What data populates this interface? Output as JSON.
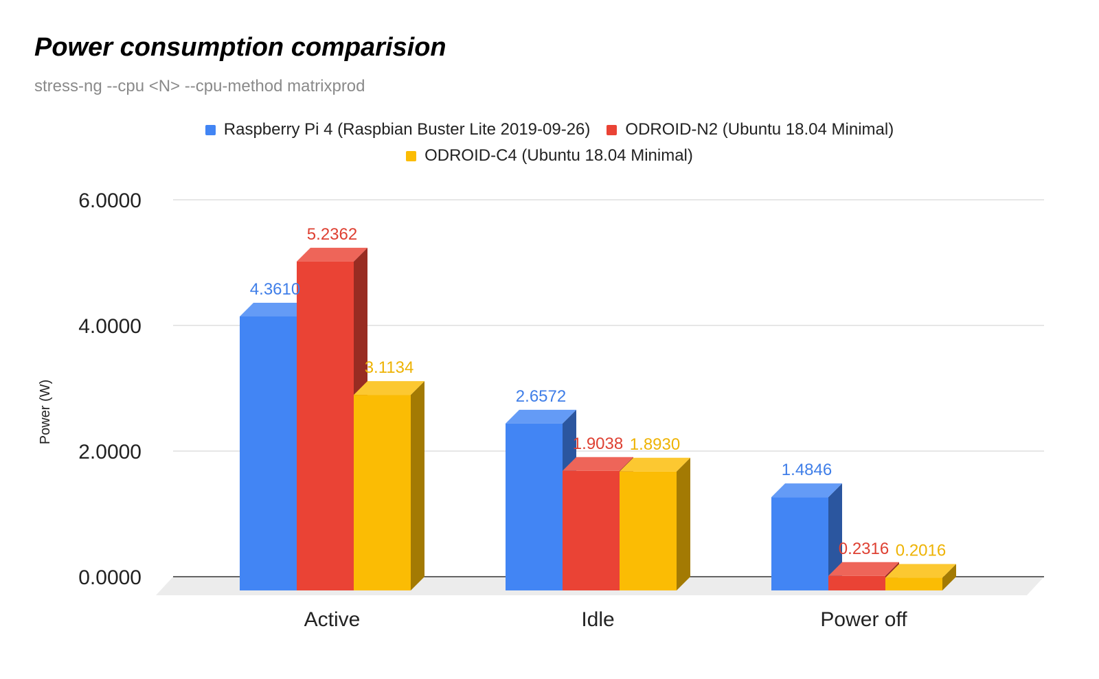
{
  "chart_data": {
    "type": "bar",
    "title": "Power consumption comparision",
    "subtitle": "stress-ng --cpu <N> --cpu-method matrixprod",
    "ylabel": "Power (W)",
    "xlabel": "",
    "categories": [
      "Active",
      "Idle",
      "Power off"
    ],
    "series": [
      {
        "name": "Raspberry Pi 4 (Raspbian Buster Lite 2019-09-26)",
        "color": "#4285f4",
        "values": [
          4.361,
          2.6572,
          1.4846
        ],
        "labels": [
          "4.3610",
          "2.6572",
          "1.4846"
        ]
      },
      {
        "name": "ODROID-N2 (Ubuntu 18.04 Minimal)",
        "color": "#ea4335",
        "values": [
          5.2362,
          1.9038,
          0.2316
        ],
        "labels": [
          "5.2362",
          "1.9038",
          "0.2316"
        ]
      },
      {
        "name": "ODROID-C4 (Ubuntu 18.04 Minimal)",
        "color": "#fbbc04",
        "values": [
          3.1134,
          1.893,
          0.2016
        ],
        "labels": [
          "3.1134",
          "1.8930",
          "0.2016"
        ]
      }
    ],
    "ylim": [
      0,
      6
    ],
    "yticks": [
      "0.0000",
      "2.0000",
      "4.0000",
      "6.0000"
    ],
    "ytick_values": [
      0,
      2,
      4,
      6
    ],
    "grid": true,
    "legend_position": "top"
  }
}
